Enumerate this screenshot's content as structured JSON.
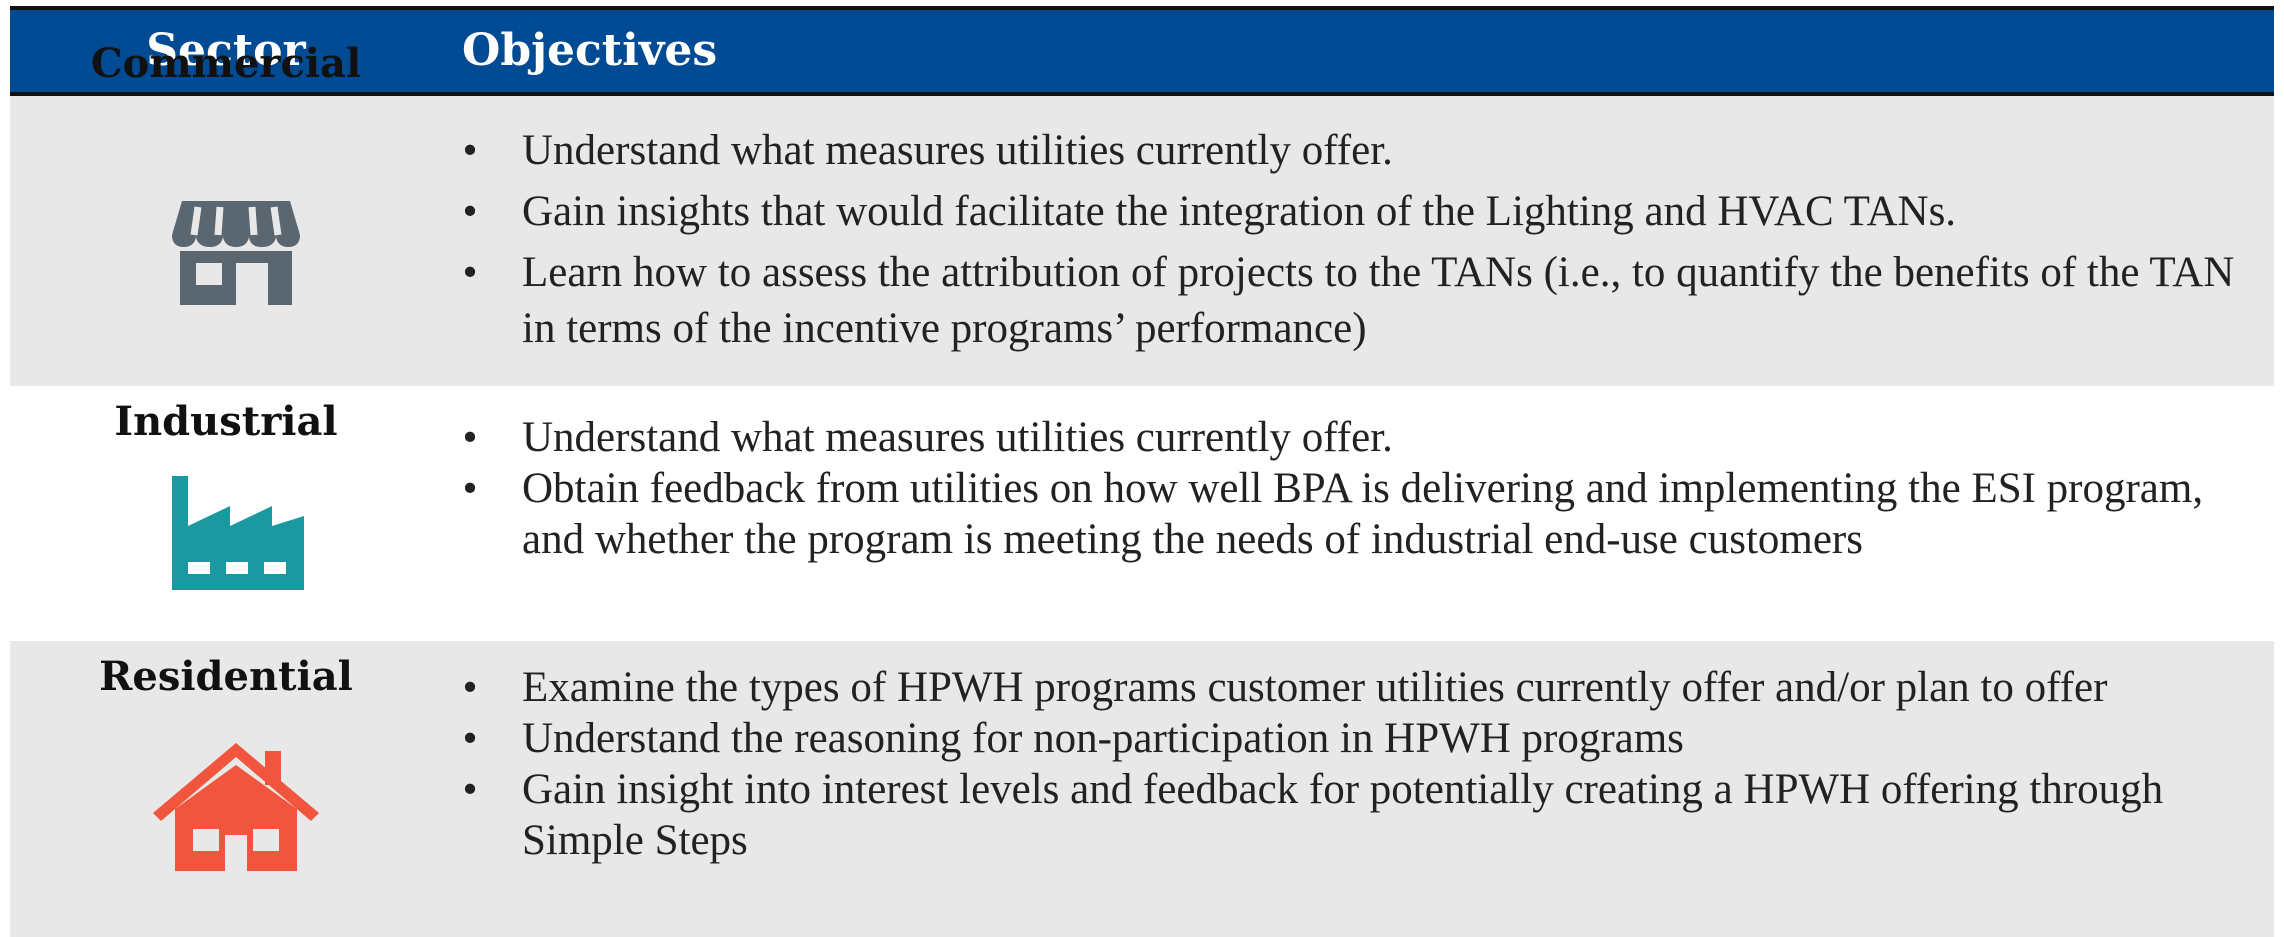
{
  "header": {
    "columns": [
      "Sector",
      "Objectives"
    ]
  },
  "rows": [
    {
      "sector": "Commercial",
      "objectives": [
        "Understand what measures utilities currently offer.",
        "Gain insights that would facilitate the integration of the Lighting and HVAC TANs.",
        "Learn how to assess the attribution of projects to the TANs (i.e., to quantify the benefits of the TAN in terms of the incentive programs’ performance)"
      ]
    },
    {
      "sector": "Industrial",
      "objectives": [
        "Understand what measures utilities currently offer.",
        "Obtain feedback from utilities on how well BPA is delivering and implementing the ESI program, and whether the program is meeting the needs of industrial end-use customers"
      ]
    },
    {
      "sector": "Residential",
      "objectives": [
        "Examine the types of HPWH programs customer utilities currently offer and/or plan to offer",
        "Understand the reasoning for non-participation in HPWH programs",
        "Gain insight into interest levels and feedback for potentially creating a HPWH offering through Simple Steps"
      ]
    }
  ]
}
